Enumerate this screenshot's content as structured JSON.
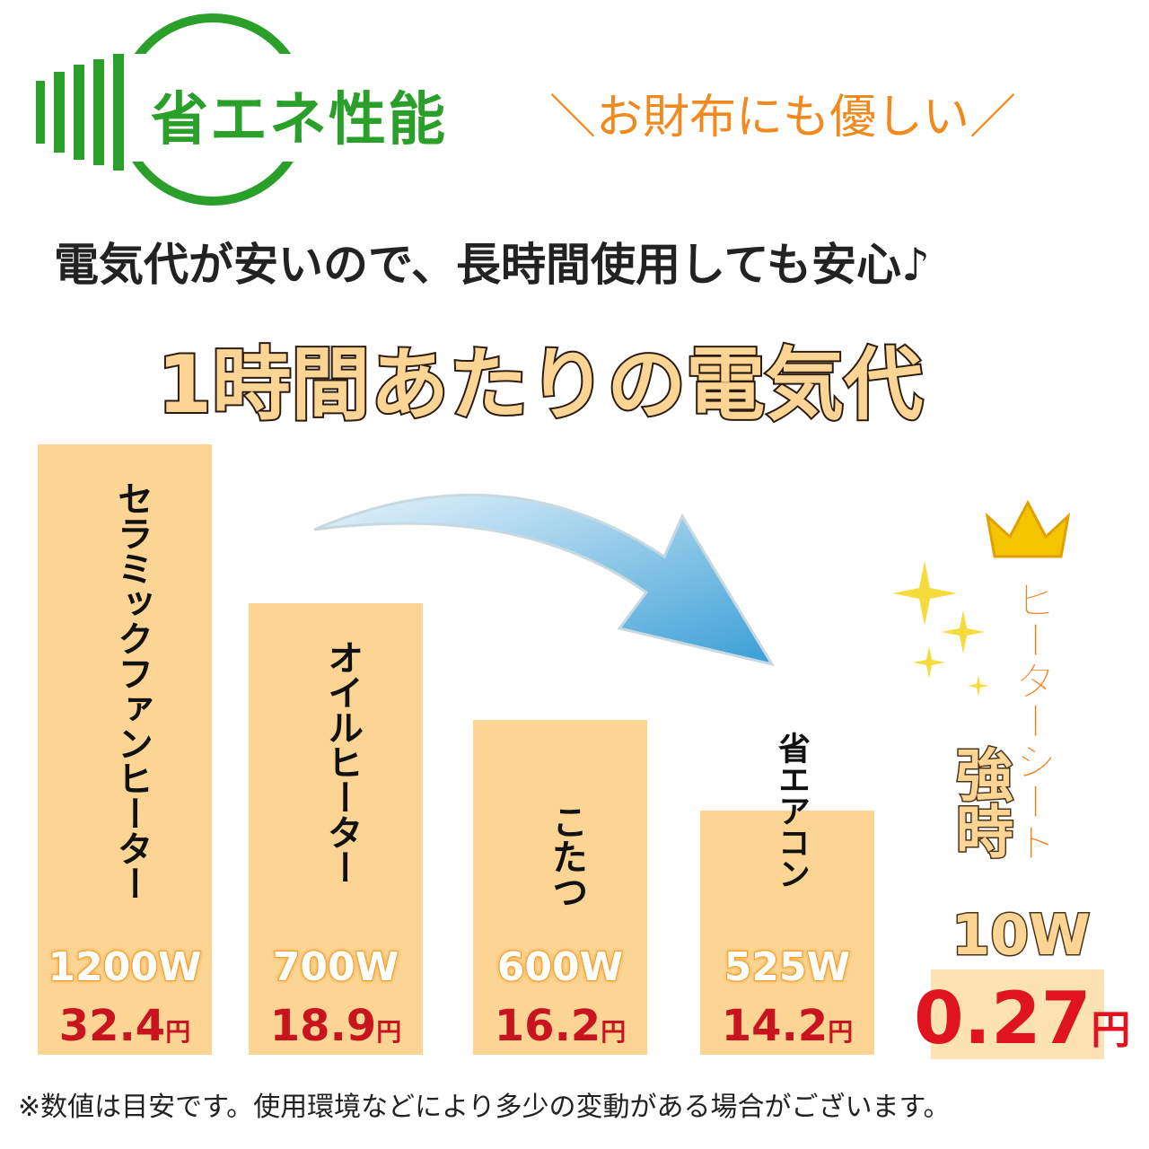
{
  "header": {
    "badge": "省エネ性能",
    "tagline": "＼お財布にも優しい／"
  },
  "subtitle": "電気代が安いので、長時間使用しても安心♪",
  "title": "1時間あたりの電気代",
  "items": [
    {
      "name": "セラミックファンヒーター",
      "watts": "1200W",
      "cost": "32.4",
      "unit": "円"
    },
    {
      "name": "オイルヒーター",
      "watts": "700W",
      "cost": "18.9",
      "unit": "円"
    },
    {
      "name": "こたつ",
      "watts": "600W",
      "cost": "16.2",
      "unit": "円"
    },
    {
      "name": "省エアコン",
      "watts": "525W",
      "cost": "14.2",
      "unit": "円"
    }
  ],
  "highlight": {
    "name": "ヒーターシート",
    "mode": "強時",
    "watts": "10W",
    "cost": "0.27",
    "unit": "円"
  },
  "note": "※数値は目安です。使用環境などにより多少の変動がある場合がございます。"
}
